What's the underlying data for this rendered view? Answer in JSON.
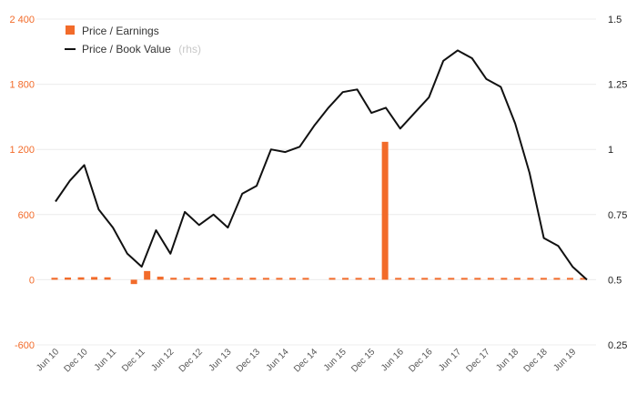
{
  "chart_data": {
    "type": "bar",
    "colors": {
      "bars": "#f26b2a",
      "line": "#111111",
      "grid": "#ececec",
      "left_axis_text": "#f26b2a"
    },
    "legend": {
      "position": "top-left",
      "bar_label": "Price / Earnings",
      "line_label": "Price / Book Value",
      "line_suffix": "(rhs)"
    },
    "y_left": {
      "range": [
        -600,
        2400
      ],
      "ticks": [
        -600,
        0,
        600,
        1200,
        1800,
        2400
      ],
      "tick_labels": [
        "-600",
        "0",
        "600",
        "1 200",
        "1 800",
        "2 400"
      ]
    },
    "y_right": {
      "range": [
        0.25,
        1.5
      ],
      "ticks": [
        0.25,
        0.5,
        0.75,
        1,
        1.25,
        1.5
      ],
      "tick_labels": [
        "0.25",
        "0.5",
        "0.75",
        "1",
        "1.25",
        "1.5"
      ]
    },
    "x_tick_labels": [
      "Jun 10",
      "Dec 10",
      "Jun 11",
      "Dec 11",
      "Jun 12",
      "Dec 12",
      "Jun 13",
      "Dec 13",
      "Jun 14",
      "Dec 14",
      "Jun 15",
      "Dec 15",
      "Jun 16",
      "Dec 16",
      "Jun 17",
      "Dec 17",
      "Jun 18",
      "Dec 18",
      "Jun 19"
    ],
    "x_tick_positions": [
      0,
      2,
      4,
      6,
      8,
      10,
      12,
      14,
      16,
      18,
      20,
      22,
      24,
      26,
      28,
      30,
      32,
      34,
      36
    ],
    "grid": true,
    "series": [
      {
        "name": "Price / Earnings",
        "axis": "left",
        "kind": "bar",
        "values": [
          18,
          20,
          22,
          25,
          22,
          0,
          -40,
          80,
          28,
          18,
          16,
          18,
          20,
          16,
          15,
          18,
          14,
          12,
          12,
          12,
          0,
          12,
          12,
          14,
          12,
          1270,
          4,
          5,
          6,
          4,
          7,
          8,
          7,
          6,
          7,
          7,
          6,
          5,
          4,
          3,
          2
        ]
      },
      {
        "name": "Price / Book Value",
        "axis": "right",
        "kind": "line",
        "values": [
          0.8,
          0.88,
          0.94,
          0.77,
          0.7,
          0.6,
          0.55,
          0.69,
          0.6,
          0.76,
          0.71,
          0.75,
          0.7,
          0.83,
          0.86,
          1.0,
          0.99,
          1.01,
          1.09,
          1.16,
          1.22,
          1.23,
          1.14,
          1.16,
          1.08,
          1.14,
          1.2,
          1.34,
          1.38,
          1.35,
          1.27,
          1.24,
          1.1,
          0.91,
          0.66,
          0.63,
          0.55,
          0.5
        ]
      }
    ]
  }
}
